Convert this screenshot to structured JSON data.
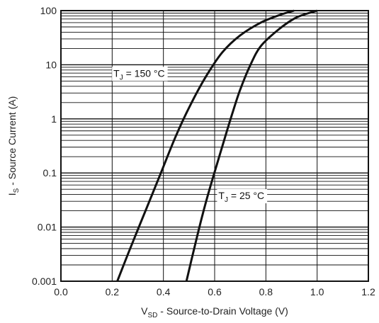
{
  "chart_data": {
    "type": "line",
    "xlabel": {
      "main": "V",
      "sub": "SD",
      "rest": " - Source-to-Drain Voltage (V)"
    },
    "ylabel": {
      "main": "I",
      "sub": "S",
      "rest": " - Source Current (A)"
    },
    "xlim": [
      0.0,
      1.2
    ],
    "ylim": [
      0.001,
      100
    ],
    "yscale": "log",
    "x_ticks": [
      "0.0",
      "0.2",
      "0.4",
      "0.6",
      "0.8",
      "1.0",
      "1.2"
    ],
    "y_ticks": [
      "0.001",
      "0.01",
      "0.1",
      "1",
      "10",
      "100"
    ],
    "grid": true,
    "series": [
      {
        "name": "T_J = 150 °C",
        "label_parts": {
          "main": "T",
          "sub": "J",
          "rest": " = 150 °C"
        },
        "x": [
          0.22,
          0.27,
          0.33,
          0.39,
          0.45,
          0.51,
          0.57,
          0.63,
          0.7,
          0.78,
          0.86,
          0.91
        ],
        "y": [
          0.001,
          0.004,
          0.02,
          0.1,
          0.5,
          2.0,
          6.5,
          17,
          35,
          60,
          85,
          100
        ]
      },
      {
        "name": "T_J = 25 °C",
        "label_parts": {
          "main": "T",
          "sub": "J",
          "rest": " = 25 °C"
        },
        "x": [
          0.49,
          0.52,
          0.55,
          0.58,
          0.61,
          0.64,
          0.67,
          0.7,
          0.74,
          0.78,
          0.85,
          0.92,
          1.0
        ],
        "y": [
          0.001,
          0.004,
          0.015,
          0.05,
          0.15,
          0.45,
          1.3,
          3.5,
          10,
          22,
          45,
          75,
          100
        ]
      }
    ]
  }
}
